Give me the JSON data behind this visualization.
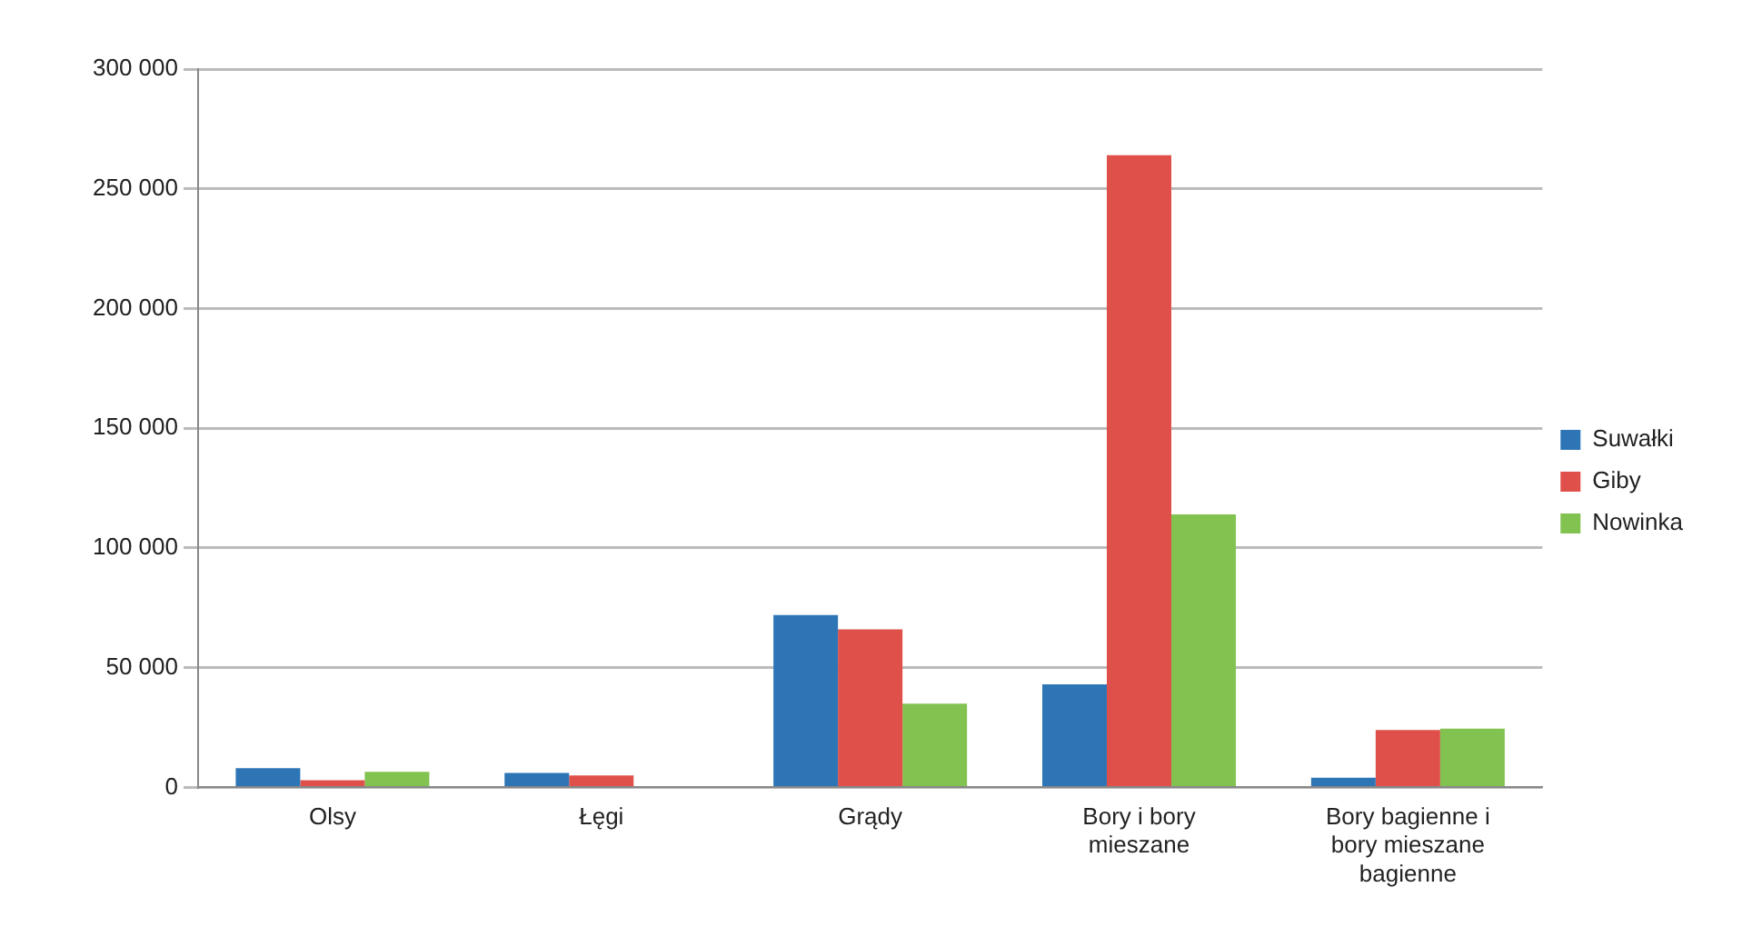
{
  "chart_data": {
    "type": "bar",
    "categories": [
      "Olsy",
      "Łęgi",
      "Grądy",
      "Bory i bory mieszane",
      "Bory bagienne i bory mieszane bagienne"
    ],
    "series": [
      {
        "name": "Suwałki",
        "color": "#2e75b6",
        "values": [
          8000,
          6000,
          72000,
          43000,
          4000
        ]
      },
      {
        "name": "Giby",
        "color": "#e0504a",
        "values": [
          3000,
          5000,
          66000,
          264000,
          24000
        ]
      },
      {
        "name": "Nowinka",
        "color": "#82c250",
        "values": [
          6500,
          0,
          35000,
          114000,
          24500
        ]
      }
    ],
    "ylim": [
      0,
      300000
    ],
    "yticks": [
      {
        "value": 0,
        "label": "0"
      },
      {
        "value": 50000,
        "label": "50 000"
      },
      {
        "value": 100000,
        "label": "100 000"
      },
      {
        "value": 150000,
        "label": "150 000"
      },
      {
        "value": 200000,
        "label": "200 000"
      },
      {
        "value": 250000,
        "label": "250 000"
      },
      {
        "value": 300000,
        "label": "300 000"
      }
    ],
    "grid": "y",
    "legend": "right"
  }
}
